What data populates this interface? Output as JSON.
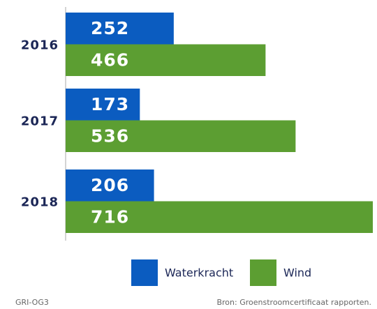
{
  "chart_data": {
    "type": "hbar",
    "categories": [
      "2016",
      "2017",
      "2018"
    ],
    "series": [
      {
        "name": "Waterkracht",
        "color": "#0b5cc0",
        "values": [
          252,
          173,
          206
        ]
      },
      {
        "name": "Wind",
        "color": "#5c9e32",
        "values": [
          466,
          536,
          716
        ]
      }
    ],
    "legend": "bottom",
    "footnote": "GRI-OG3",
    "source": "Bron: Groenstroomcertificaat rapporten."
  }
}
